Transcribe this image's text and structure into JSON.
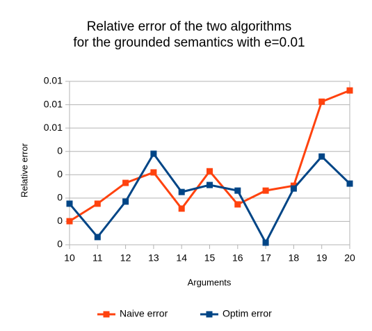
{
  "chart_data": {
    "type": "line",
    "title": [
      "Relative error of the two algorithms",
      "for the grounded semantics with e=0.01"
    ],
    "x_label": "Arguments",
    "y_label": "Relative error",
    "x": [
      10,
      11,
      12,
      13,
      14,
      15,
      16,
      17,
      18,
      19,
      20
    ],
    "xlim": [
      10,
      20
    ],
    "xticks": [
      10,
      11,
      12,
      13,
      14,
      15,
      16,
      17,
      18,
      19,
      20
    ],
    "ylim": [
      0,
      0.007
    ],
    "yticks": [
      {
        "value": 0,
        "label": "0"
      },
      {
        "value": 0.001,
        "label": "0"
      },
      {
        "value": 0.002,
        "label": "0"
      },
      {
        "value": 0.003,
        "label": "0"
      },
      {
        "value": 0.004,
        "label": "0"
      },
      {
        "value": 0.005,
        "label": "0.01"
      },
      {
        "value": 0.006,
        "label": "0.01"
      },
      {
        "value": 0.007,
        "label": "0.01"
      }
    ],
    "grid": true,
    "legend": "bottom",
    "series": [
      {
        "name": "Naive error",
        "color": "#ff420e",
        "values": [
          0.00101,
          0.00176,
          0.00265,
          0.0031,
          0.00155,
          0.00315,
          0.00173,
          0.00232,
          0.00253,
          0.00613,
          0.00661
        ]
      },
      {
        "name": "Optim error",
        "color": "#004586",
        "values": [
          0.00176,
          0.00033,
          0.00185,
          0.0039,
          0.00226,
          0.00256,
          0.00232,
          9e-05,
          0.00241,
          0.00378,
          0.00262
        ]
      }
    ]
  }
}
